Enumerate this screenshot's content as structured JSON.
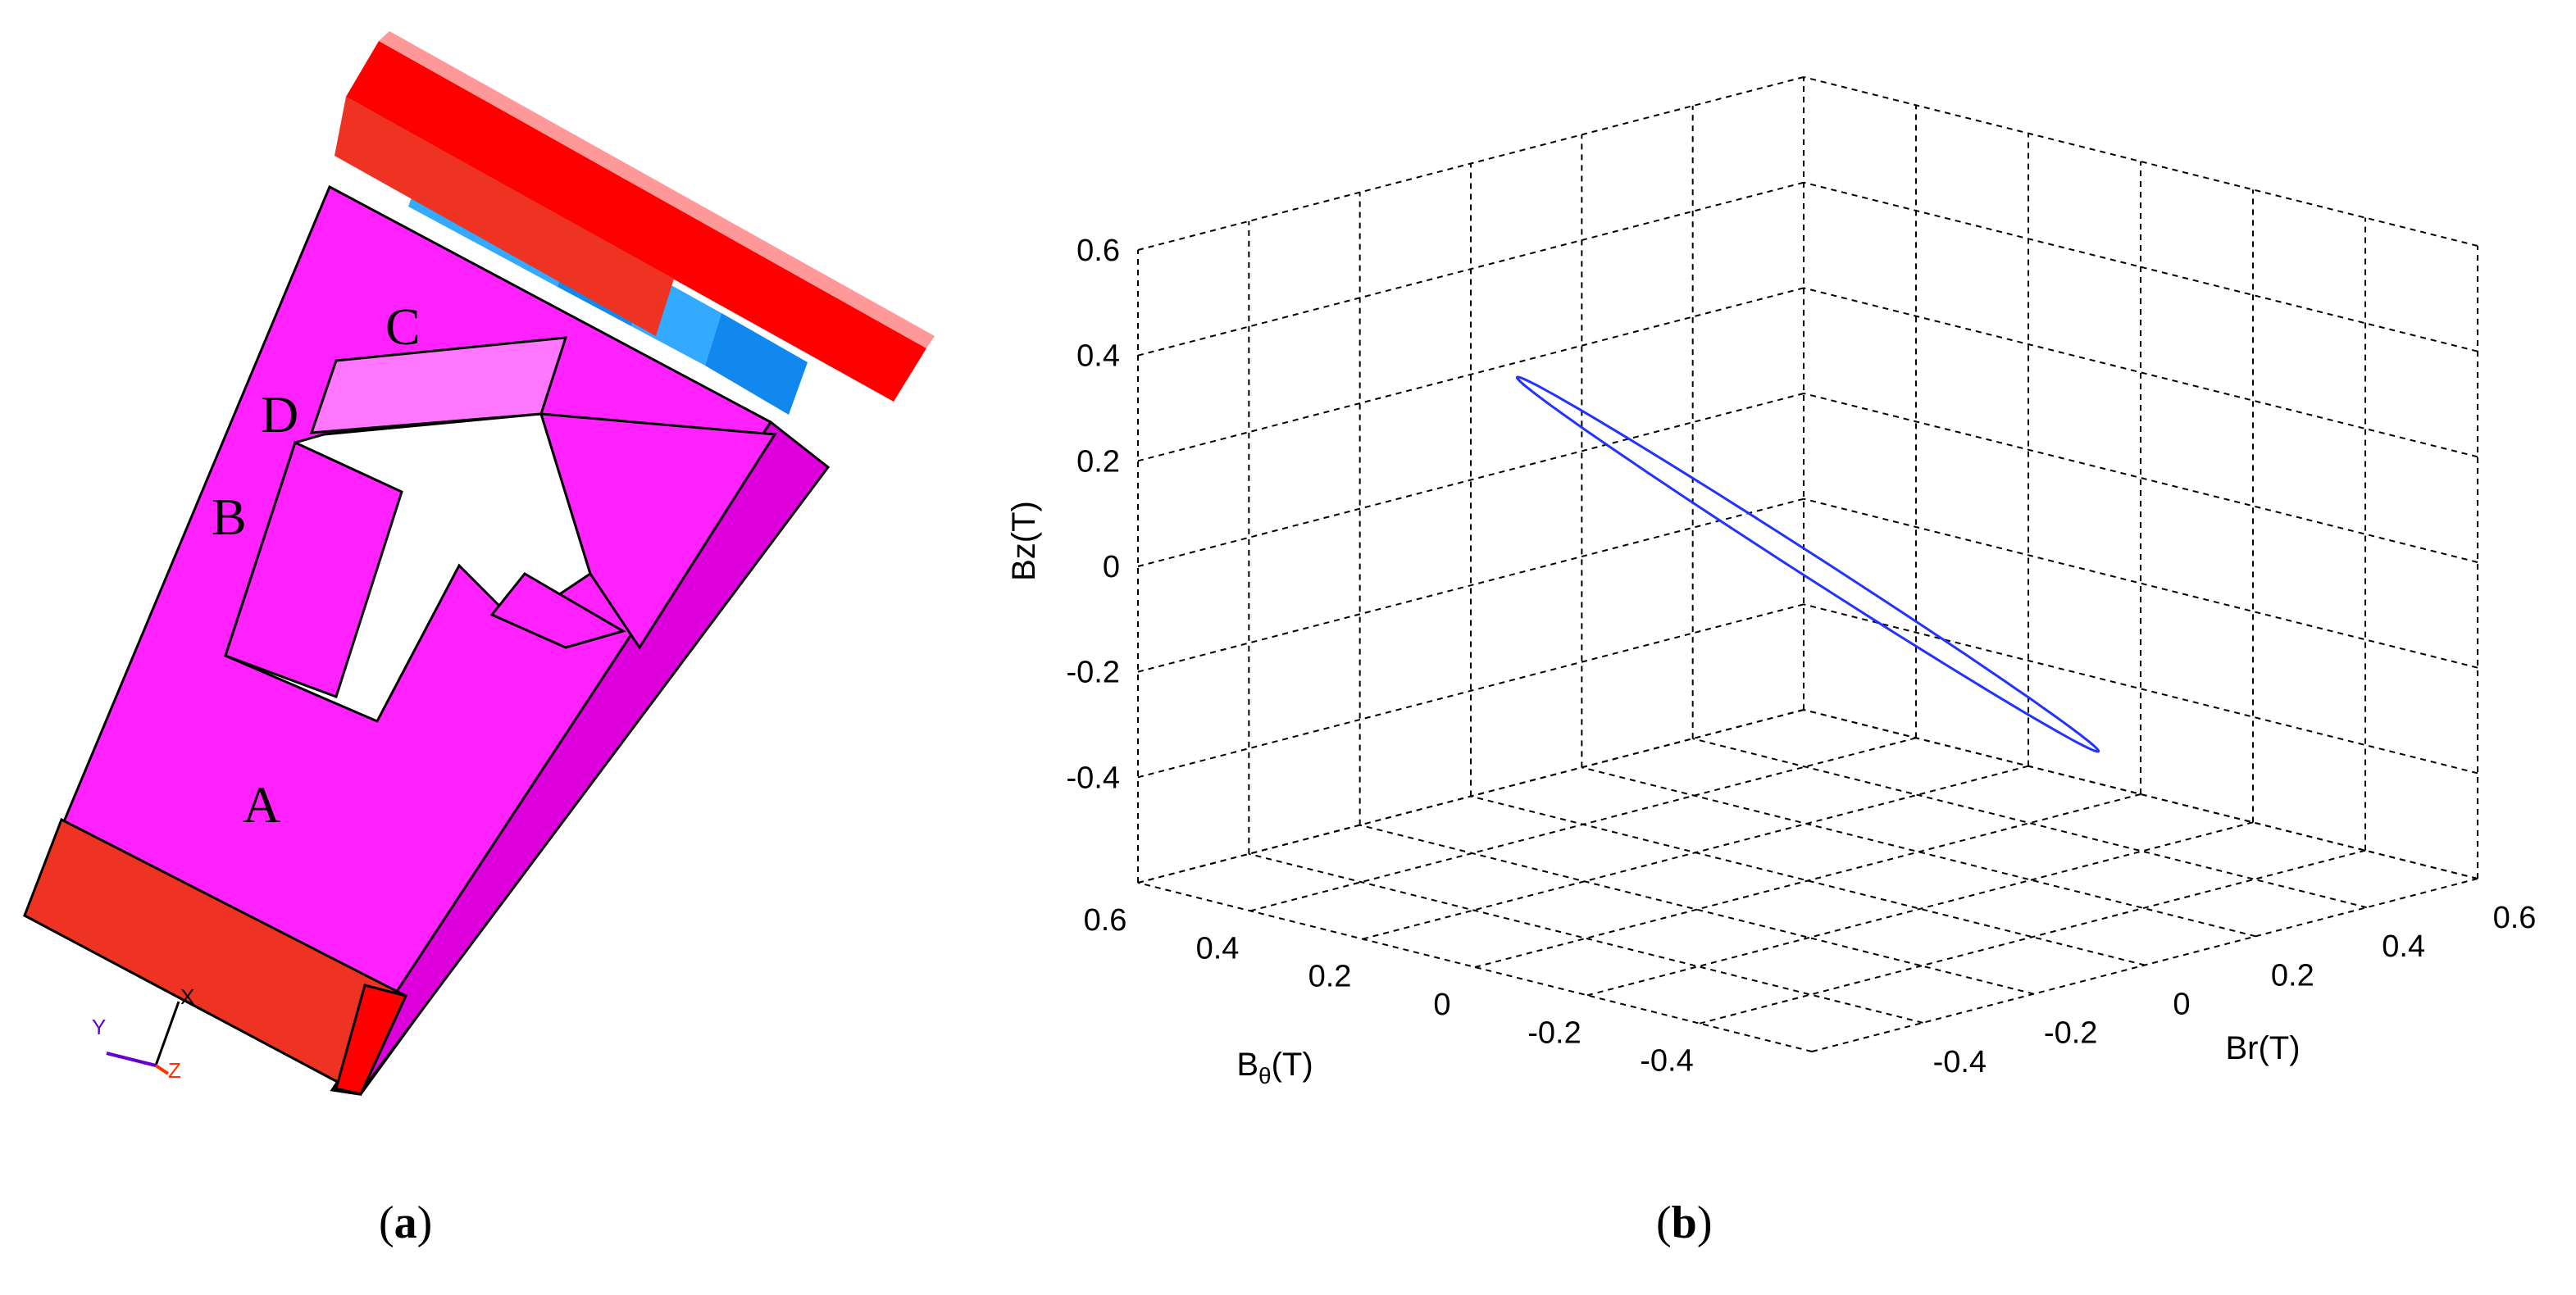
{
  "panel_a": {
    "labels": {
      "A": "A",
      "B": "B",
      "C": "C",
      "D": "D"
    },
    "triad": {
      "y": "Y",
      "x": "X",
      "z": "Z"
    },
    "colors": {
      "core": "#ff22ff",
      "core_dark": "#dd00dd",
      "core_light": "#ff77ff",
      "yoke": "#ee3322",
      "yoke_dark": "#ff0000",
      "magnet": "#1188ee",
      "magnet_light": "#33aaff"
    }
  },
  "panel_b": {
    "caption_letter": "b",
    "caption_open": "(",
    "caption_close": ")"
  },
  "panel_a_caption": {
    "letter": "a",
    "open": "(",
    "close": ")"
  },
  "chart_data": {
    "type": "line",
    "projection": "3d",
    "xlabel": "Br(T)",
    "ylabel_prefix": "B",
    "ylabel_sub": "θ",
    "ylabel_suffix": "(T)",
    "zlabel": "Bz(T)",
    "xlim": [
      -0.6,
      0.6
    ],
    "ylim": [
      -0.6,
      0.6
    ],
    "zlim": [
      -0.6,
      0.6
    ],
    "x_ticks": [
      "-0.4",
      "-0.2",
      "0",
      "0.2",
      "0.4",
      "0.6"
    ],
    "y_ticks": [
      "-0.4",
      "-0.2",
      "0",
      "0.2",
      "0.4",
      "0.6"
    ],
    "z_ticks": [
      "-0.4",
      "-0.2",
      "0",
      "0.2",
      "0.4",
      "0.6"
    ],
    "grid": true,
    "series": [
      {
        "color": "#2233ff",
        "shape": "ellipse",
        "vertex_a": {
          "x": -0.47,
          "y": 0.05,
          "z": 0.47
        },
        "vertex_b": {
          "x": 0.47,
          "y": -0.05,
          "z": -0.47
        },
        "minor_half": {
          "x": 0.0,
          "y": 0.06,
          "z": 0.0
        }
      }
    ]
  }
}
